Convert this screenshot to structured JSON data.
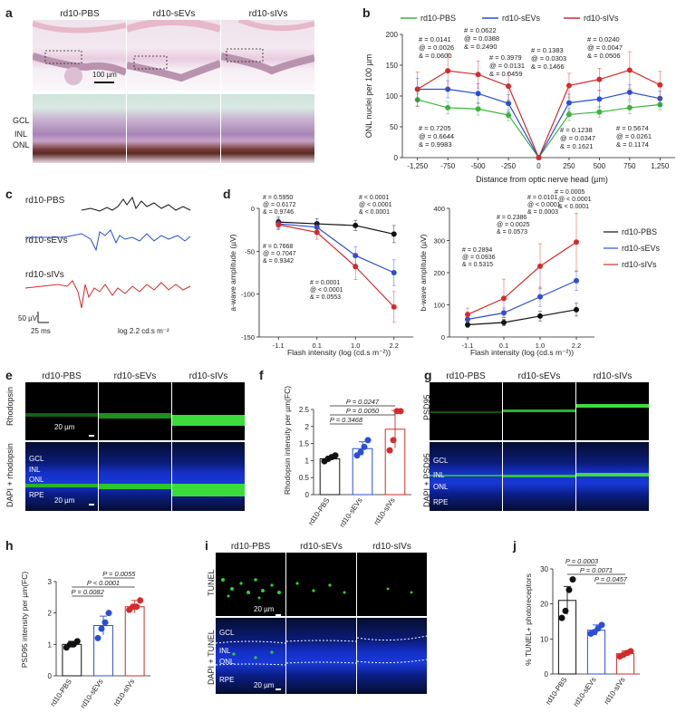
{
  "panel_letters": {
    "a": "a",
    "b": "b",
    "c": "c",
    "d": "d",
    "e": "e",
    "f": "f",
    "g": "g",
    "h": "h",
    "i": "i",
    "j": "j"
  },
  "groups": [
    "rd10-PBS",
    "rd10-sEVs",
    "rd10-sIVs"
  ],
  "colors": {
    "pbs": "#111111",
    "sevs": "#2a4fd6",
    "sivs": "#d42b2b",
    "onl_pbs": "#3cb43c"
  },
  "panel_a": {
    "scale_top": "100 µm",
    "layer_labels": [
      "GCL",
      "INL",
      "ONL"
    ]
  },
  "panel_b": {
    "legend": [
      "rd10-PBS",
      "rd10-sEVs",
      "rd10-sIVs"
    ],
    "stats_left": [
      {
        "l1": "# = 0.0141",
        "l2": "@ = 0.0026",
        "l3": "& = 0.0600"
      },
      {
        "l1": "# = 0.0622",
        "l2": "@ = 0.0388",
        "l3": "& = 0.2490"
      },
      {
        "l1": "# = 0.3979",
        "l2": "@ = 0.0131",
        "l3": "& = 0.0459"
      },
      {
        "l1": "# = 0.7205",
        "l2": "@ = 0.6644",
        "l3": "& = 0.9983"
      }
    ],
    "stats_right": [
      {
        "l1": "# = 0.1383",
        "l2": "@ = 0.0303",
        "l3": "& = 0.1466"
      },
      {
        "l1": "# = 0.0240",
        "l2": "@ = 0.0047",
        "l3": "& = 0.0506"
      },
      {
        "l1": "# = 0.1238",
        "l2": "@ = 0.0347",
        "l3": "& = 0.1621"
      },
      {
        "l1": "# = 0.5674",
        "l2": "@ = 0.0261",
        "l3": "& = 0.1174"
      }
    ]
  },
  "panel_c": {
    "labels": [
      "rd10-PBS",
      "rd10-sEVs",
      "rd10-sIVs"
    ],
    "scale_y": "50 µV",
    "scale_x": "25 ms",
    "flash": "log 2.2 cd.s m⁻²"
  },
  "panel_d": {
    "a_stats": [
      {
        "l1": "# = 0.5950",
        "l2": "@ = 0.6172",
        "l3": "& = 0.9746"
      },
      {
        "l1": "# = 0.7668",
        "l2": "@ = 0.7047",
        "l3": "& = 0.9342"
      },
      {
        "l1": "# = 0.0001",
        "l2": "@ < 0.0001",
        "l3": "& = 0.0553"
      },
      {
        "l1": "# < 0.0001",
        "l2": "@ < 0.0001",
        "l3": "& < 0.0001"
      }
    ],
    "b_stats": [
      {
        "l1": "# = 0.2894",
        "l2": "@ = 0.0936",
        "l3": "& = 0.5315"
      },
      {
        "l1": "# = 0.2386",
        "l2": "@ = 0.0025",
        "l3": "& = 0.0573"
      },
      {
        "l1": "# = 0.0101",
        "l2": "@ < 0.0001",
        "l3": "& = 0.0003"
      },
      {
        "l1": "# = 0.0005",
        "l2": "@ < 0.0001",
        "l3": "& < 0.0001"
      }
    ],
    "legend": [
      "rd10-PBS",
      "rd10-sEVs",
      "rd10-sIVs"
    ]
  },
  "panel_e": {
    "row1": "Rhodopsin",
    "row2": "DAPI + rhodopsin",
    "scale": "20 µm",
    "layers": [
      "GCL",
      "INL",
      "ONL",
      "RPE"
    ]
  },
  "panel_g": {
    "row1": "PSD95",
    "row2": "DAPI + PSD95",
    "layers": [
      "GCL",
      "INL",
      "ONL",
      "RPE"
    ]
  },
  "panel_i": {
    "row1": "TUNEL",
    "row2": "DAPI + TUNEL",
    "scale": "20 µm",
    "layers": [
      "GCL",
      "INL",
      "ONL",
      "RPE"
    ]
  },
  "chart_data": [
    {
      "id": "b",
      "type": "line",
      "title": "",
      "xlabel": "Distance from optic nerve head (µm)",
      "ylabel": "ONL nuclei per 100 µm",
      "x": [
        -1250,
        -750,
        -500,
        -250,
        0,
        250,
        500,
        750,
        1250
      ],
      "x_tick_labels": [
        "-1,250",
        "-750",
        "-500",
        "-250",
        "0",
        "250",
        "500",
        "750",
        "1,250"
      ],
      "ylim": [
        0,
        200
      ],
      "yticks": [
        0,
        50,
        100,
        150,
        200
      ],
      "series": [
        {
          "name": "rd10-PBS",
          "color": "#3cb43c",
          "values": [
            94,
            81,
            79,
            69,
            0,
            70,
            74,
            81,
            86
          ],
          "err": [
            10,
            10,
            10,
            9,
            0,
            10,
            9,
            10,
            9
          ]
        },
        {
          "name": "rd10-sEVs",
          "color": "#2a4fd6",
          "values": [
            111,
            111,
            104,
            88,
            0,
            89,
            95,
            106,
            96
          ],
          "err": [
            18,
            14,
            16,
            14,
            0,
            14,
            14,
            12,
            12
          ]
        },
        {
          "name": "rd10-sIVs",
          "color": "#d42b2b",
          "values": [
            111,
            141,
            135,
            116,
            0,
            117,
            127,
            142,
            118
          ],
          "err": [
            28,
            28,
            22,
            22,
            0,
            20,
            18,
            30,
            22
          ]
        }
      ]
    },
    {
      "id": "d-a",
      "type": "line",
      "xlabel": "Flash intensity (log (cd.s m⁻²))",
      "ylabel": "a-wave amplitude (µV)",
      "x": [
        -1.1,
        0.1,
        1.0,
        2.2
      ],
      "x_tick_labels": [
        "-1.1",
        "0.1",
        "1.0",
        "2.2"
      ],
      "ylim": [
        -150,
        0
      ],
      "yticks": [
        0,
        -50,
        -100,
        -150
      ],
      "series": [
        {
          "name": "rd10-PBS",
          "color": "#111111",
          "values": [
            -16,
            -18,
            -20,
            -30
          ],
          "err": [
            6,
            6,
            6,
            10
          ]
        },
        {
          "name": "rd10-sEVs",
          "color": "#2a4fd6",
          "values": [
            -18,
            -22,
            -55,
            -75
          ],
          "err": [
            6,
            6,
            10,
            15
          ]
        },
        {
          "name": "rd10-sIVs",
          "color": "#d42b2b",
          "values": [
            -19,
            -28,
            -68,
            -115
          ],
          "err": [
            6,
            8,
            15,
            18
          ]
        }
      ]
    },
    {
      "id": "d-b",
      "type": "line",
      "xlabel": "Flash intensity (log (cd.s m⁻²))",
      "ylabel": "b-wave amplitude (µV)",
      "x": [
        -1.1,
        0.1,
        1.0,
        2.2
      ],
      "x_tick_labels": [
        "-1.1",
        "0.1",
        "1.0",
        "2.2"
      ],
      "ylim": [
        0,
        400
      ],
      "yticks": [
        0,
        100,
        200,
        300,
        400
      ],
      "series": [
        {
          "name": "rd10-PBS",
          "color": "#111111",
          "values": [
            38,
            45,
            65,
            85
          ],
          "err": [
            8,
            10,
            15,
            20
          ]
        },
        {
          "name": "rd10-sEVs",
          "color": "#2a4fd6",
          "values": [
            55,
            75,
            125,
            175
          ],
          "err": [
            10,
            15,
            30,
            30
          ]
        },
        {
          "name": "rd10-sIVs",
          "color": "#d42b2b",
          "values": [
            70,
            120,
            220,
            295
          ],
          "err": [
            20,
            60,
            70,
            90
          ]
        }
      ]
    },
    {
      "id": "f",
      "type": "bar",
      "ylabel": "Rhodopsin intensity per µm(FC)",
      "categories": [
        "rd10-PBS",
        "rd10-sEVs",
        "rd10-sIVs"
      ],
      "values": [
        1.05,
        1.35,
        1.92
      ],
      "err": [
        0.08,
        0.2,
        0.55
      ],
      "points": [
        [
          0.98,
          1.05,
          1.1,
          1.15
        ],
        [
          1.15,
          1.25,
          1.4,
          1.6
        ],
        [
          1.3,
          1.6,
          2.45,
          2.45
        ]
      ],
      "ylim": [
        0,
        2.5
      ],
      "yticks": [
        0,
        0.5,
        1.0,
        1.5,
        2.0,
        2.5
      ],
      "brackets": [
        {
          "label": "P = 0.0247"
        },
        {
          "label": "P = 0.0050"
        },
        {
          "label": "P = 0.3468"
        }
      ]
    },
    {
      "id": "h",
      "type": "bar",
      "ylabel": "PSD95 intensity per µm(FC)",
      "categories": [
        "rd10-PBS",
        "rd10-sEVs",
        "rd10-sIVs"
      ],
      "values": [
        1.0,
        1.6,
        2.2
      ],
      "err": [
        0.1,
        0.3,
        0.2
      ],
      "points": [
        [
          0.9,
          1.0,
          1.0,
          1.1
        ],
        [
          1.2,
          1.5,
          1.7,
          2.0
        ],
        [
          2.1,
          2.2,
          2.2,
          2.4
        ]
      ],
      "ylim": [
        0,
        3
      ],
      "yticks": [
        0,
        1,
        2,
        3
      ],
      "brackets": [
        {
          "label": "P = 0.0055"
        },
        {
          "label": "P < 0.0001"
        },
        {
          "label": "P = 0.0082"
        }
      ]
    },
    {
      "id": "j",
      "type": "bar",
      "ylabel": "% TUNEL+ photoreceptors",
      "categories": [
        "rd10-PBS",
        "rd10-sEVs",
        "rd10-sIVs"
      ],
      "values": [
        21,
        12.5,
        5.8
      ],
      "err": [
        4,
        1.5,
        0.8
      ],
      "points": [
        [
          16,
          18,
          24,
          27
        ],
        [
          11.5,
          12,
          13,
          14
        ],
        [
          5,
          5.5,
          6,
          6.5
        ]
      ],
      "ylim": [
        0,
        30
      ],
      "yticks": [
        0,
        10,
        20,
        30
      ],
      "brackets": [
        {
          "label": "P = 0.0003"
        },
        {
          "label": "P = 0.0071"
        },
        {
          "label": "P = 0.0457"
        }
      ]
    }
  ]
}
